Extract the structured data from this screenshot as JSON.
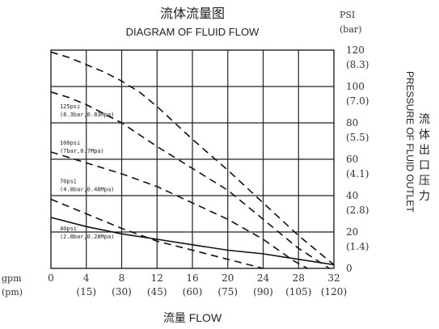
{
  "chart_data": {
    "type": "line",
    "title": "流体流量图",
    "subtitle": "DIAGRAM OF FLUID FLOW",
    "xlabel": "流量 FLOW",
    "x_unit_primary": "gpm",
    "x_unit_secondary": "(pm)",
    "x_ticks": [
      "0",
      "4",
      "8",
      "12",
      "16",
      "20",
      "24",
      "28",
      "32"
    ],
    "x_ticks_secondary": [
      "(15)",
      "(30)",
      "(45)",
      "(60)",
      "(75)",
      "(90)",
      "(105)",
      "(120)"
    ],
    "xlim": [
      0,
      32
    ],
    "ylabel": "PRESSURE OF FLUID OUTLET",
    "ylabel_cn": "流体出口压力",
    "y_unit_primary": "PSI",
    "y_unit_secondary": "(bar)",
    "y_ticks": [
      "120",
      "100",
      "80",
      "60",
      "40",
      "20",
      "0"
    ],
    "y_ticks_secondary": [
      "(8.3)",
      "(7.0)",
      "(5.5)",
      "(4.1)",
      "(2.8)",
      "(1.4)"
    ],
    "ylim": [
      0,
      120
    ],
    "grid": true,
    "series": [
      {
        "name": "125psi",
        "label_line1": "125psi",
        "label_line2": "(8.3bar,0.83Mpa)",
        "points": [
          [
            0,
            119
          ],
          [
            2,
            116
          ],
          [
            4,
            112
          ],
          [
            6,
            108
          ],
          [
            8,
            103
          ],
          [
            10,
            97
          ],
          [
            12,
            89
          ],
          [
            16,
            71
          ],
          [
            20,
            54
          ],
          [
            24,
            36
          ],
          [
            28,
            18
          ],
          [
            32,
            2
          ]
        ]
      },
      {
        "name": "100psi",
        "label_line1": "100psi",
        "label_line2": "(7bar,0.7Mpa)",
        "points": [
          [
            0,
            97
          ],
          [
            2,
            94
          ],
          [
            4,
            90
          ],
          [
            8,
            80
          ],
          [
            12,
            67
          ],
          [
            16,
            55
          ],
          [
            20,
            43
          ],
          [
            24,
            27
          ],
          [
            28,
            11
          ],
          [
            31.5,
            0
          ]
        ]
      },
      {
        "name": "70psi",
        "label_line1": "70psi",
        "label_line2": "(4.8bar,0.48Mpa)",
        "points": [
          [
            0,
            64
          ],
          [
            4,
            58
          ],
          [
            8,
            52
          ],
          [
            12,
            45
          ],
          [
            16,
            36
          ],
          [
            20,
            27
          ],
          [
            24,
            16
          ],
          [
            27.5,
            4
          ],
          [
            29,
            0
          ]
        ]
      },
      {
        "name": "40psi",
        "label_line1": "40psi",
        "label_line2": "(2.8bar,0.28Mpa)",
        "points": [
          [
            0,
            38
          ],
          [
            4,
            30
          ],
          [
            8,
            22
          ],
          [
            12,
            15
          ],
          [
            16,
            10
          ],
          [
            20,
            5
          ],
          [
            24,
            0
          ]
        ]
      },
      {
        "name": "40psi-alt",
        "solid": true,
        "points": [
          [
            0,
            28
          ],
          [
            4,
            23
          ],
          [
            8,
            19
          ],
          [
            12,
            16
          ],
          [
            16,
            13
          ],
          [
            20,
            10
          ],
          [
            24,
            8
          ],
          [
            28,
            5
          ],
          [
            32,
            2
          ]
        ]
      }
    ]
  }
}
